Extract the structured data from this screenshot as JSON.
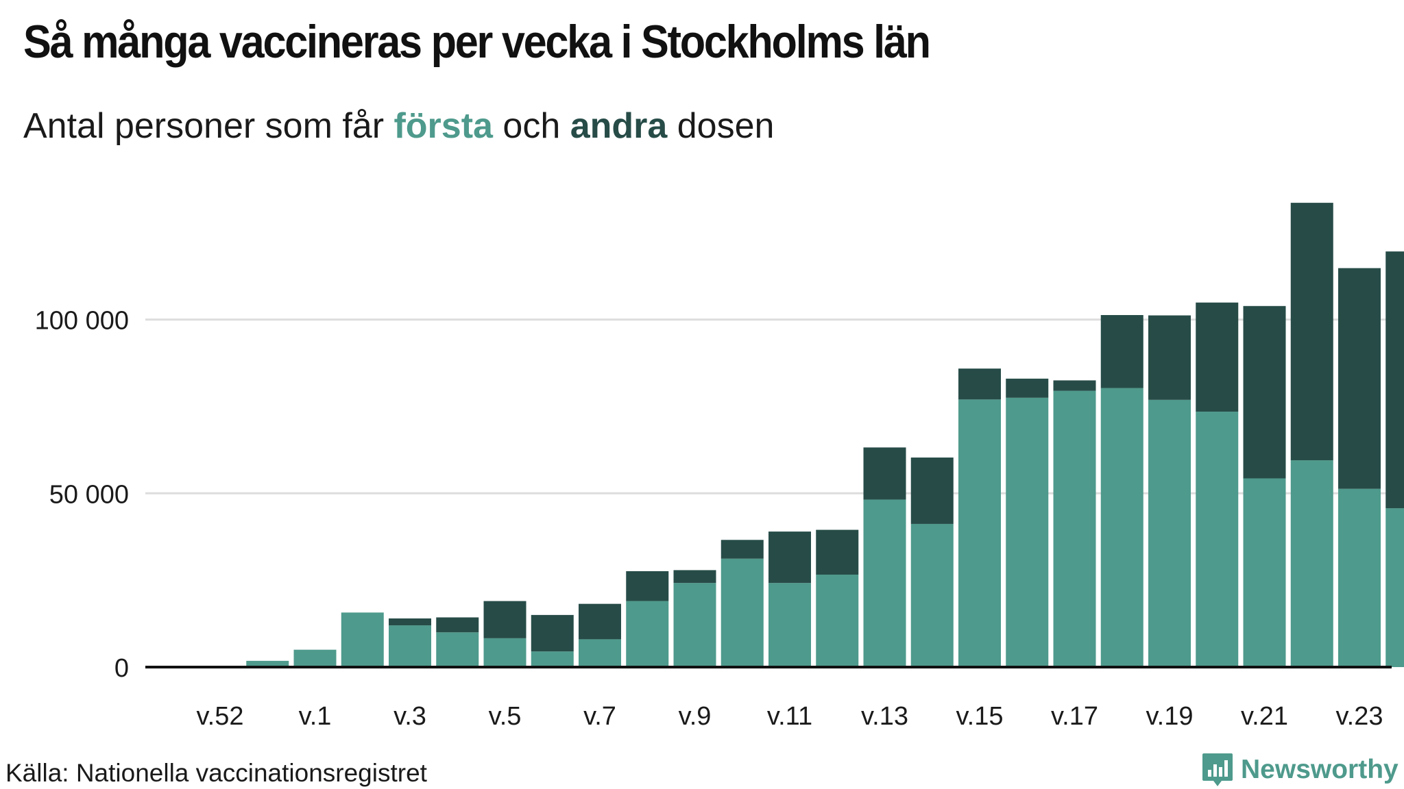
{
  "colors": {
    "first": "#4e9a8c",
    "second": "#274c48",
    "grid": "#dddddd",
    "axis": "#111111"
  },
  "header": {
    "title": "Så många vaccineras per vecka i Stockholms län",
    "subtitle_pre": "Antal personer som får ",
    "subtitle_first": "första",
    "subtitle_mid": " och ",
    "subtitle_second": "andra",
    "subtitle_post": " dosen"
  },
  "footer": {
    "source": "Källa: Nationella vaccinationsregistret",
    "brand": "Newsworthy",
    "brand_icon": "bar-chart-speech-bubble-icon"
  },
  "chart_data": {
    "type": "bar",
    "stacked": true,
    "title": "Så många vaccineras per vecka i Stockholms län",
    "subtitle": "Antal personer som får första och andra dosen",
    "categories": [
      "v.52",
      "v.53",
      "v.1",
      "v.2",
      "v.3",
      "v.4",
      "v.5",
      "v.6",
      "v.7",
      "v.8",
      "v.9",
      "v.10",
      "v.11",
      "v.12",
      "v.13",
      "v.14",
      "v.15",
      "v.16",
      "v.17",
      "v.18",
      "v.19",
      "v.20",
      "v.21",
      "v.22",
      "v.23",
      "v.24"
    ],
    "tick_labels": [
      "v.52",
      "v.1",
      "v.3",
      "v.5",
      "v.7",
      "v.9",
      "v.11",
      "v.13",
      "v.15",
      "v.17",
      "v.19",
      "v.21",
      "v.23"
    ],
    "series": [
      {
        "name": "första",
        "color": "#4e9a8c",
        "values": [
          0,
          1800,
          5000,
          15700,
          12000,
          10000,
          8300,
          4500,
          8000,
          19000,
          24200,
          31200,
          24200,
          26600,
          48200,
          41200,
          77000,
          77500,
          79500,
          80300,
          76900,
          73500,
          54300,
          59500,
          51300,
          45700
        ]
      },
      {
        "name": "andra",
        "color": "#274c48",
        "values": [
          0,
          0,
          0,
          0,
          2000,
          4300,
          10700,
          10500,
          10200,
          8600,
          3700,
          5400,
          14800,
          12900,
          15000,
          19100,
          8900,
          5500,
          3000,
          21000,
          24300,
          31400,
          49600,
          74100,
          63500,
          73900
        ]
      }
    ],
    "ylim": [
      0,
      135000
    ],
    "yticks": [
      0,
      50000,
      100000
    ],
    "ytick_labels": [
      "0",
      "50 000",
      "100 000"
    ],
    "xlabel": "",
    "ylabel": "",
    "grid": true,
    "legend": "in subtitle"
  }
}
